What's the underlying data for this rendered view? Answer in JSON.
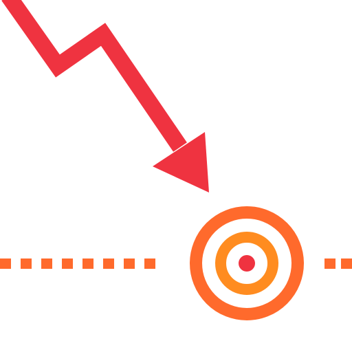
{
  "colors": {
    "background": "#ffffff",
    "arrow": "#ef3340",
    "dashes": "#ff6a2c",
    "outer_ring": "#ff6a2c",
    "inner_ring": "#ff8c20",
    "center_dot": "#ef3340"
  },
  "icons": {
    "arrow": "downtrend-arrow-icon",
    "target": "target-icon",
    "baseline": "dashed-baseline"
  }
}
